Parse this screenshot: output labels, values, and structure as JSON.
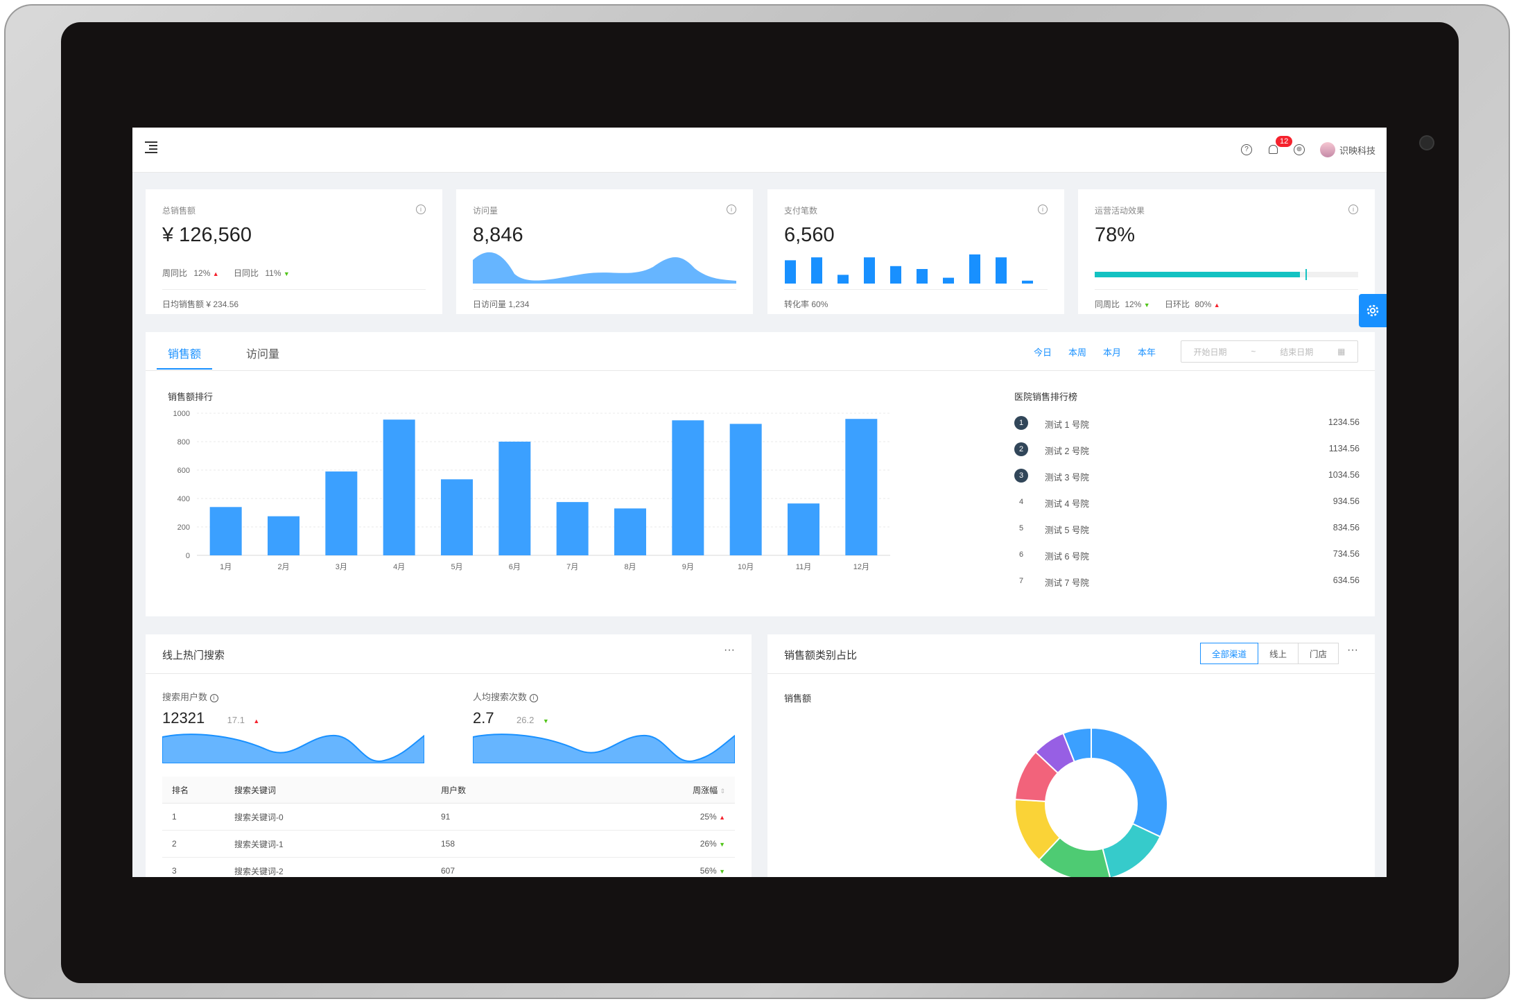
{
  "topbar": {
    "notification_count": "12",
    "user_name": "识映科技"
  },
  "kpis": [
    {
      "title": "总销售额",
      "value": "¥ 126,560",
      "week_label": "周同比",
      "week_value": "12%",
      "day_label": "日同比",
      "day_value": "11%",
      "footer_label": "日均销售额",
      "footer_value": "¥ 234.56"
    },
    {
      "title": "访问量",
      "value": "8,846",
      "footer_label": "日访问量",
      "footer_value": "1,234"
    },
    {
      "title": "支付笔数",
      "value": "6,560",
      "footer_label": "转化率",
      "footer_value": "60%",
      "bars": [
        8,
        9,
        3,
        9,
        6,
        5,
        2,
        10,
        9,
        1
      ]
    },
    {
      "title": "运营活动效果",
      "value": "78%",
      "progress": 0.78,
      "target": 0.8,
      "week_label": "同周比",
      "week_value": "12%",
      "day_label": "日环比",
      "day_value": "80%"
    }
  ],
  "sales": {
    "tabs": [
      "销售额",
      "访问量"
    ],
    "ranges": [
      "今日",
      "本周",
      "本月",
      "本年"
    ],
    "start_placeholder": "开始日期",
    "separator": "~",
    "end_placeholder": "结束日期",
    "chart_title": "销售额排行",
    "ranking_title": "医院销售排行榜",
    "ranking": [
      {
        "rank": "1",
        "name": "测试 1 号院",
        "value": "1234.56"
      },
      {
        "rank": "2",
        "name": "测试 2 号院",
        "value": "1134.56"
      },
      {
        "rank": "3",
        "name": "测试 3 号院",
        "value": "1034.56"
      },
      {
        "rank": "4",
        "name": "测试 4 号院",
        "value": "934.56"
      },
      {
        "rank": "5",
        "name": "测试 5 号院",
        "value": "834.56"
      },
      {
        "rank": "6",
        "name": "测试 6 号院",
        "value": "734.56"
      },
      {
        "rank": "7",
        "name": "测试 7 号院",
        "value": "634.56"
      }
    ]
  },
  "chart_data": {
    "type": "bar",
    "categories": [
      "1月",
      "2月",
      "3月",
      "4月",
      "5月",
      "6月",
      "7月",
      "8月",
      "9月",
      "10月",
      "11月",
      "12月"
    ],
    "values": [
      340,
      275,
      590,
      955,
      535,
      800,
      375,
      330,
      950,
      925,
      365,
      960
    ],
    "ylim": [
      0,
      1000
    ],
    "yticks": [
      "0",
      "200",
      "400",
      "600",
      "800",
      "1000"
    ],
    "grid": true,
    "color": "#3ba0ff"
  },
  "search": {
    "title": "线上热门搜索",
    "more": "···",
    "users_label": "搜索用户数",
    "users_value": "12321",
    "users_change": "17.1",
    "avg_label": "人均搜索次数",
    "avg_value": "2.7",
    "avg_change": "26.2",
    "columns": [
      "排名",
      "搜索关键词",
      "用户数",
      "周涨幅"
    ],
    "rows": [
      {
        "rank": "1",
        "keyword": "搜索关键词-0",
        "users": "91",
        "change": "25%"
      },
      {
        "rank": "2",
        "keyword": "搜索关键词-1",
        "users": "158",
        "change": "26%"
      },
      {
        "rank": "3",
        "keyword": "搜索关键词-2",
        "users": "607",
        "change": "56%"
      }
    ]
  },
  "category": {
    "title": "销售额类别占比",
    "more": "···",
    "segments": [
      "全部渠道",
      "线上",
      "门店"
    ],
    "chart_label": "销售额",
    "donut": {
      "type": "pie",
      "values": [
        32,
        14,
        16,
        14,
        11,
        7,
        6
      ],
      "colors": [
        "#3ba0ff",
        "#36cbcb",
        "#4ecb73",
        "#fad337",
        "#f2637b",
        "#975fe4",
        "#3ba0ff"
      ]
    }
  }
}
